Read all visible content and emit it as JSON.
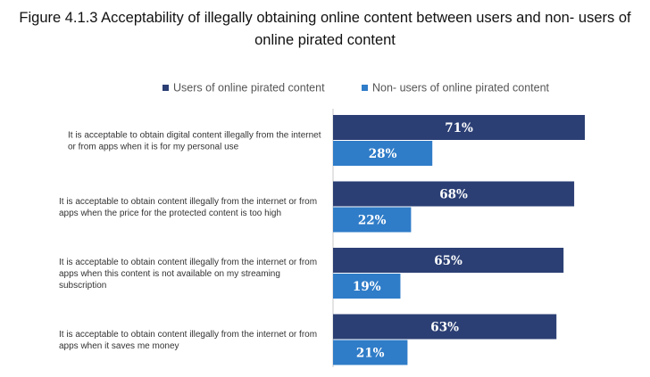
{
  "chart_data": {
    "type": "bar",
    "orientation": "horizontal",
    "title_line1": "Figure 4.1.3 Acceptability of illegally obtaining online content between users and non- users of",
    "title_line2": "online pirated content",
    "legend_position": "top",
    "xlim": [
      0,
      100
    ],
    "grid": false,
    "categories": [
      [
        "It is acceptable to obtain digital content illegally from the internet",
        "or from apps when it is for my personal use"
      ],
      [
        "It is acceptable to obtain  content illegally from the internet or from",
        "apps when the price for the protected content is too high"
      ],
      [
        "It is acceptable to obtain content illegally from the internet or from",
        "apps when this content is not available on my streaming",
        "subscription"
      ],
      [
        "It is acceptable to obtain content illegally from the internet or from",
        "apps when it saves me money"
      ]
    ],
    "series": [
      {
        "name": "Users of online pirated content",
        "color": "#2b3f74",
        "values": [
          71,
          68,
          65,
          63
        ],
        "labels": [
          "71%",
          "68%",
          "65%",
          "63%"
        ]
      },
      {
        "name": "Non- users of online pirated content",
        "color": "#2f7cc8",
        "values": [
          28,
          22,
          19,
          21
        ],
        "labels": [
          "28%",
          "22%",
          "19%",
          "21%"
        ]
      }
    ]
  }
}
